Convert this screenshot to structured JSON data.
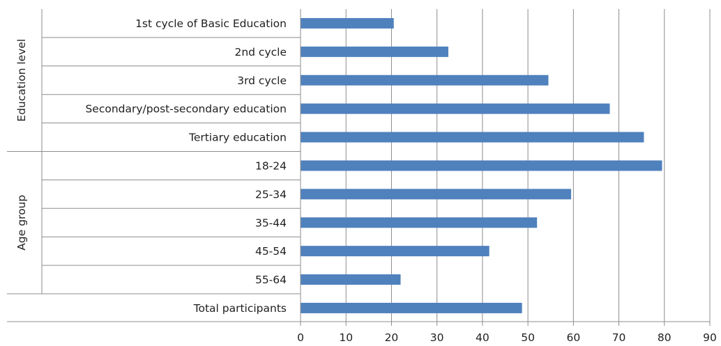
{
  "chart_data": {
    "type": "bar",
    "orientation": "horizontal",
    "title": "",
    "xlabel": "",
    "ylabel": "",
    "xlim": [
      0,
      90
    ],
    "x_ticks": [
      "0",
      "10",
      "20",
      "30",
      "40",
      "50",
      "60",
      "70",
      "80",
      "90"
    ],
    "grid": true,
    "legend": "none",
    "bar_color": "#4f81bd",
    "groups": [
      {
        "name": "Education level",
        "categories": [
          "1st cycle of Basic Education",
          "2nd cycle",
          "3rd cycle",
          "Secondary/post-secondary education",
          "Tertiary education"
        ]
      },
      {
        "name": "Age group",
        "categories": [
          "18-24",
          "25-34",
          "35-44",
          "45-54",
          "55-64"
        ]
      },
      {
        "name": "",
        "categories": [
          "Total participants"
        ]
      }
    ],
    "categories": [
      "1st cycle of Basic Education",
      "2nd cycle",
      "3rd cycle",
      "Secondary/post-secondary education",
      "Tertiary education",
      "18-24",
      "25-34",
      "35-44",
      "45-54",
      "55-64",
      "Total participants"
    ],
    "values": [
      20.5,
      32.5,
      54.5,
      68,
      75.5,
      79.5,
      59.5,
      52,
      41.5,
      22,
      48.7
    ]
  }
}
